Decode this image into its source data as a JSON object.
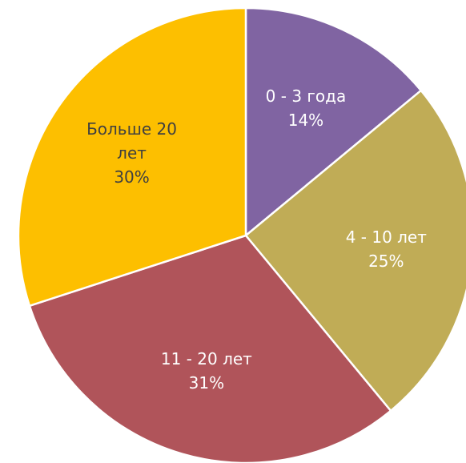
{
  "chart_data": {
    "type": "pie",
    "categories": [
      "0 - 3 года",
      "4 - 10 лет",
      "11 - 20 лет",
      "Больше 20 лет"
    ],
    "values": [
      14,
      25,
      31,
      30
    ],
    "value_labels": [
      "14%",
      "25%",
      "31%",
      "30%"
    ],
    "colors": [
      "#8064a2",
      "#c0ac56",
      "#b0545a",
      "#fdbf00"
    ]
  }
}
